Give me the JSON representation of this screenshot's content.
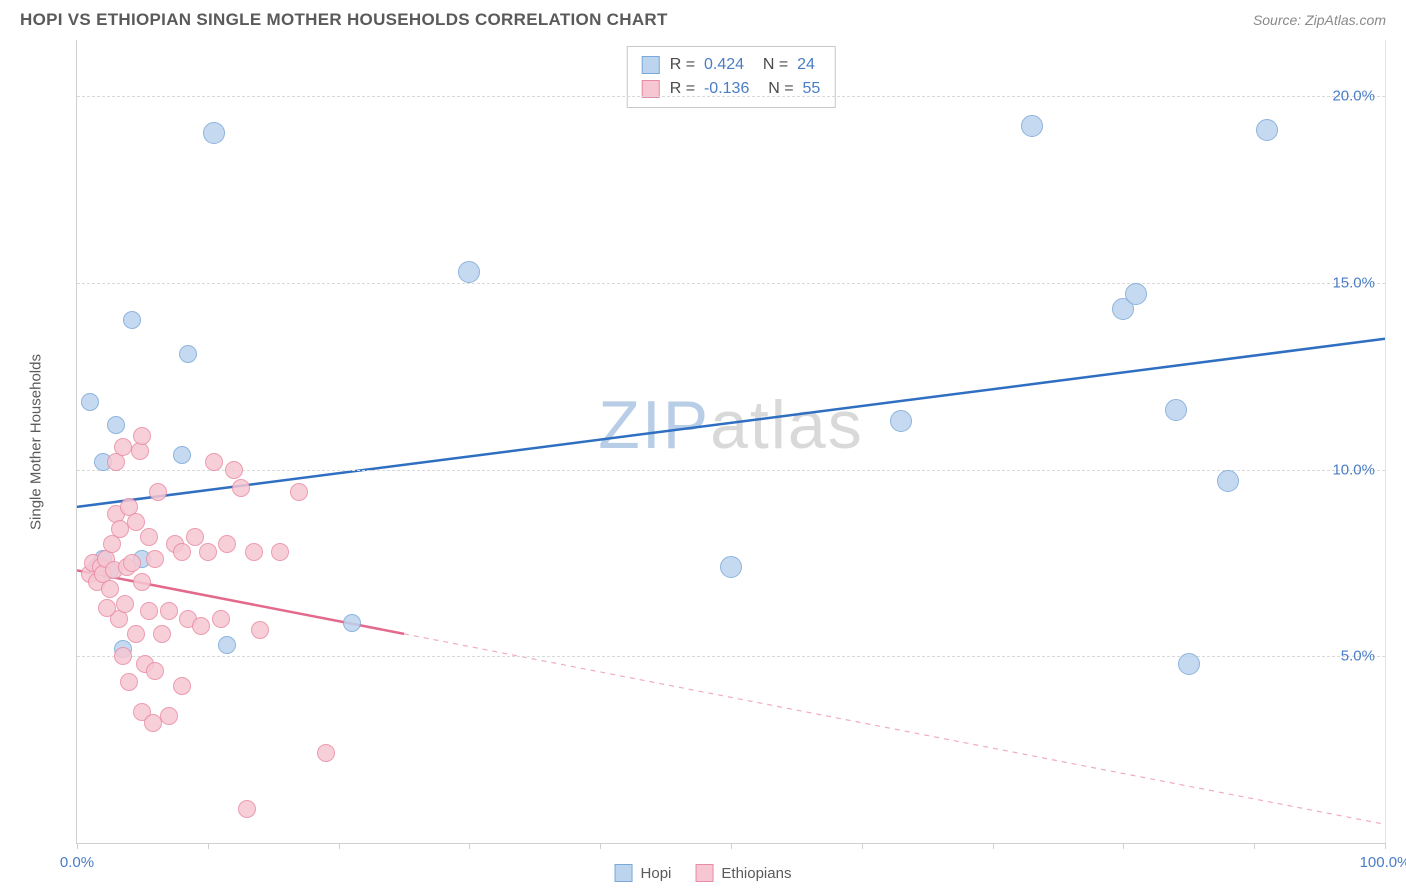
{
  "title": "HOPI VS ETHIOPIAN SINGLE MOTHER HOUSEHOLDS CORRELATION CHART",
  "source_label": "Source: ZipAtlas.com",
  "ylabel": "Single Mother Households",
  "watermark": {
    "part1": "ZIP",
    "part2": "atlas"
  },
  "chart": {
    "type": "scatter",
    "xlim": [
      0,
      100
    ],
    "ylim": [
      0,
      21.5
    ],
    "x_ticks": [
      0,
      10,
      20,
      30,
      40,
      50,
      60,
      70,
      80,
      90,
      100
    ],
    "x_tick_labels": {
      "0": "0.0%",
      "100": "100.0%"
    },
    "y_gridlines": [
      5,
      10,
      15,
      20
    ],
    "y_tick_labels": {
      "5": "5.0%",
      "10": "10.0%",
      "15": "15.0%",
      "20": "20.0%"
    },
    "background_color": "#ffffff",
    "grid_color": "#d9d9d9",
    "axis_color": "#cfcfcf",
    "tick_label_color": "#4a7cc4",
    "point_radius_small": 9,
    "point_radius_large": 11,
    "series": [
      {
        "name": "Hopi",
        "color_fill": "#bcd4ee",
        "color_stroke": "#7aa8d8",
        "trend_color": "#2f6fc1",
        "R": "0.424",
        "N": "24",
        "trend": {
          "x1": 0,
          "y1": 9.0,
          "x2": 100,
          "y2": 13.5,
          "solid_until_x": 100
        },
        "points": [
          {
            "x": 1,
            "y": 11.8
          },
          {
            "x": 2.5,
            "y": 7.3
          },
          {
            "x": 2,
            "y": 7.6
          },
          {
            "x": 3,
            "y": 11.2
          },
          {
            "x": 4.2,
            "y": 14.0
          },
          {
            "x": 5,
            "y": 7.6
          },
          {
            "x": 8,
            "y": 10.4
          },
          {
            "x": 8.5,
            "y": 13.1
          },
          {
            "x": 10.5,
            "y": 19.0,
            "big": true
          },
          {
            "x": 11.5,
            "y": 5.3
          },
          {
            "x": 21,
            "y": 5.9
          },
          {
            "x": 30,
            "y": 15.3,
            "big": true
          },
          {
            "x": 50,
            "y": 7.4,
            "big": true
          },
          {
            "x": 63,
            "y": 11.3,
            "big": true
          },
          {
            "x": 73,
            "y": 19.2,
            "big": true
          },
          {
            "x": 80,
            "y": 14.3,
            "big": true
          },
          {
            "x": 81,
            "y": 14.7,
            "big": true
          },
          {
            "x": 84,
            "y": 11.6,
            "big": true
          },
          {
            "x": 85,
            "y": 4.8,
            "big": true
          },
          {
            "x": 88,
            "y": 9.7,
            "big": true
          },
          {
            "x": 91,
            "y": 19.1,
            "big": true
          },
          {
            "x": 2,
            "y": 10.2
          },
          {
            "x": 3.5,
            "y": 5.2
          },
          {
            "x": 1.5,
            "y": 7.4
          }
        ]
      },
      {
        "name": "Ethiopians",
        "color_fill": "#f6c7d3",
        "color_stroke": "#e98ba4",
        "trend_color": "#e46a8c",
        "R": "-0.136",
        "N": "55",
        "trend": {
          "x1": 0,
          "y1": 7.3,
          "x2": 100,
          "y2": 0.5,
          "solid_until_x": 25
        },
        "points": [
          {
            "x": 1,
            "y": 7.2
          },
          {
            "x": 1.2,
            "y": 7.5
          },
          {
            "x": 1.5,
            "y": 7.0
          },
          {
            "x": 1.8,
            "y": 7.4
          },
          {
            "x": 2,
            "y": 7.2
          },
          {
            "x": 2.2,
            "y": 7.6
          },
          {
            "x": 2.5,
            "y": 6.8
          },
          {
            "x": 2.8,
            "y": 7.3
          },
          {
            "x": 3,
            "y": 8.8
          },
          {
            "x": 3,
            "y": 10.2
          },
          {
            "x": 3.2,
            "y": 6.0
          },
          {
            "x": 3.3,
            "y": 8.4
          },
          {
            "x": 3.5,
            "y": 5.0
          },
          {
            "x": 3.5,
            "y": 10.6
          },
          {
            "x": 3.8,
            "y": 7.4
          },
          {
            "x": 4,
            "y": 4.3
          },
          {
            "x": 4,
            "y": 9.0
          },
          {
            "x": 4.2,
            "y": 7.5
          },
          {
            "x": 4.5,
            "y": 5.6
          },
          {
            "x": 4.5,
            "y": 8.6
          },
          {
            "x": 4.8,
            "y": 10.5
          },
          {
            "x": 5,
            "y": 3.5
          },
          {
            "x": 5,
            "y": 7.0
          },
          {
            "x": 5,
            "y": 10.9
          },
          {
            "x": 5.2,
            "y": 4.8
          },
          {
            "x": 5.5,
            "y": 6.2
          },
          {
            "x": 5.5,
            "y": 8.2
          },
          {
            "x": 5.8,
            "y": 3.2
          },
          {
            "x": 6,
            "y": 4.6
          },
          {
            "x": 6,
            "y": 7.6
          },
          {
            "x": 6.2,
            "y": 9.4
          },
          {
            "x": 6.5,
            "y": 5.6
          },
          {
            "x": 7,
            "y": 3.4
          },
          {
            "x": 7,
            "y": 6.2
          },
          {
            "x": 7.5,
            "y": 8.0
          },
          {
            "x": 8,
            "y": 4.2
          },
          {
            "x": 8,
            "y": 7.8
          },
          {
            "x": 8.5,
            "y": 6.0
          },
          {
            "x": 9,
            "y": 8.2
          },
          {
            "x": 9.5,
            "y": 5.8
          },
          {
            "x": 10,
            "y": 7.8
          },
          {
            "x": 10.5,
            "y": 10.2
          },
          {
            "x": 11,
            "y": 6.0
          },
          {
            "x": 11.5,
            "y": 8.0
          },
          {
            "x": 12,
            "y": 10.0
          },
          {
            "x": 12.5,
            "y": 9.5
          },
          {
            "x": 13,
            "y": 0.9
          },
          {
            "x": 13.5,
            "y": 7.8
          },
          {
            "x": 14,
            "y": 5.7
          },
          {
            "x": 15.5,
            "y": 7.8
          },
          {
            "x": 17,
            "y": 9.4
          },
          {
            "x": 19,
            "y": 2.4
          },
          {
            "x": 2.3,
            "y": 6.3
          },
          {
            "x": 2.7,
            "y": 8.0
          },
          {
            "x": 3.7,
            "y": 6.4
          }
        ]
      }
    ]
  },
  "footer_legend": [
    {
      "label": "Hopi",
      "fill": "#bcd4ee",
      "stroke": "#7aa8d8"
    },
    {
      "label": "Ethiopians",
      "fill": "#f6c7d3",
      "stroke": "#e98ba4"
    }
  ]
}
